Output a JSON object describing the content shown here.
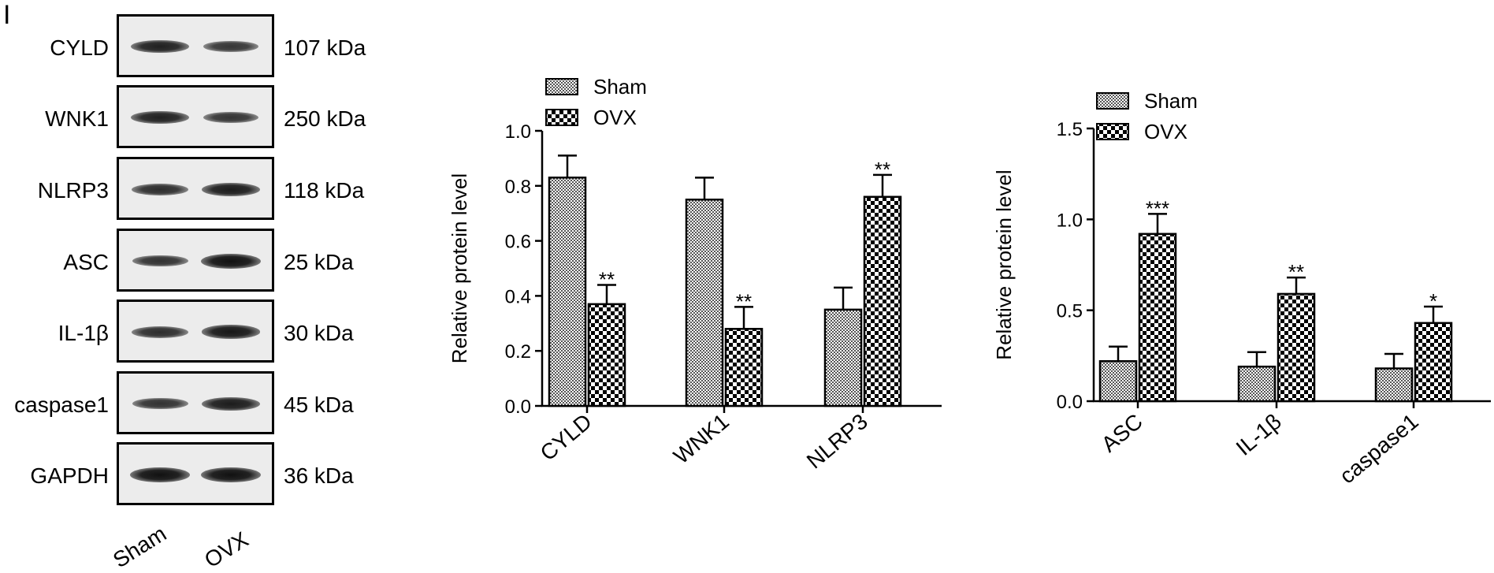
{
  "panel_label": "I",
  "blot": {
    "lanes": [
      "Sham",
      "OVX"
    ],
    "rows": [
      {
        "protein": "CYLD",
        "kda": "107 kDa",
        "intensity": [
          0.95,
          0.7
        ]
      },
      {
        "protein": "WNK1",
        "kda": "250 kDa",
        "intensity": [
          0.95,
          0.72
        ]
      },
      {
        "protein": "NLRP3",
        "kda": "118 kDa",
        "intensity": [
          0.8,
          1.0
        ]
      },
      {
        "protein": "ASC",
        "kda": "25 kDa",
        "intensity": [
          0.75,
          1.2
        ]
      },
      {
        "protein": "IL-1β",
        "kda": "30 kDa",
        "intensity": [
          0.8,
          1.05
        ]
      },
      {
        "protein": "caspase1",
        "kda": "45 kDa",
        "intensity": [
          0.75,
          1.0
        ]
      },
      {
        "protein": "GAPDH",
        "kda": "36 kDa",
        "intensity": [
          1.2,
          1.2
        ]
      }
    ]
  },
  "colors": {
    "sham_pattern": "#555555",
    "ovx_pattern": "#000000",
    "axis": "#000000"
  },
  "chart_data": [
    {
      "type": "bar",
      "title": "",
      "xlabel": "",
      "ylabel": "Relative protein level",
      "ylim": [
        0,
        1.0
      ],
      "yticks": [
        "0.0",
        "0.2",
        "0.4",
        "0.6",
        "0.8",
        "1.0"
      ],
      "categories": [
        "CYLD",
        "WNK1",
        "NLRP3"
      ],
      "series": [
        {
          "name": "Sham",
          "values": [
            0.83,
            0.75,
            0.35
          ],
          "errors": [
            0.08,
            0.08,
            0.08
          ]
        },
        {
          "name": "OVX",
          "values": [
            0.37,
            0.28,
            0.76
          ],
          "errors": [
            0.07,
            0.08,
            0.08
          ]
        }
      ],
      "annotations": [
        {
          "category": "CYLD",
          "series": "OVX",
          "text": "**"
        },
        {
          "category": "WNK1",
          "series": "OVX",
          "text": "**"
        },
        {
          "category": "NLRP3",
          "series": "OVX",
          "text": "**"
        }
      ],
      "legend": "top-left",
      "grid": false
    },
    {
      "type": "bar",
      "title": "",
      "xlabel": "",
      "ylabel": "Relative protein level",
      "ylim": [
        0,
        1.5
      ],
      "yticks": [
        "0.0",
        "0.5",
        "1.0",
        "1.5"
      ],
      "categories": [
        "ASC",
        "IL-1β",
        "caspase1"
      ],
      "series": [
        {
          "name": "Sham",
          "values": [
            0.22,
            0.19,
            0.18
          ],
          "errors": [
            0.08,
            0.08,
            0.08
          ]
        },
        {
          "name": "OVX",
          "values": [
            0.92,
            0.59,
            0.43
          ],
          "errors": [
            0.11,
            0.09,
            0.09
          ]
        }
      ],
      "annotations": [
        {
          "category": "ASC",
          "series": "OVX",
          "text": "***"
        },
        {
          "category": "IL-1β",
          "series": "OVX",
          "text": "**"
        },
        {
          "category": "caspase1",
          "series": "OVX",
          "text": "*"
        }
      ],
      "legend": "top-left",
      "grid": false
    }
  ]
}
